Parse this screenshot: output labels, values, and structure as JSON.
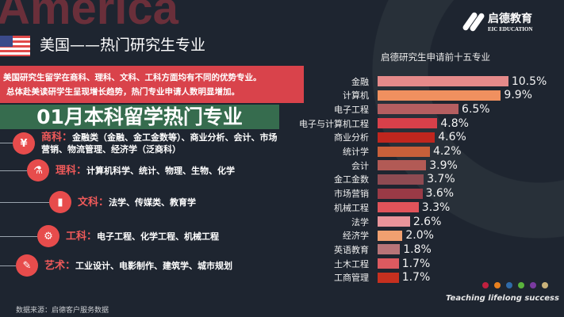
{
  "header": {
    "bg_word": "America",
    "title": "美国——热门研究生专业",
    "logo_cn": "启德教育",
    "logo_en": "EIC EDUCATION"
  },
  "intro": [
    "美国研究生留学在商科、理科、文科、工科方面均有不同的优势专业。",
    "总体赴美读研学生呈现增长趋势，热门专业申请人数明显增加。"
  ],
  "categories": [
    {
      "name": "商科",
      "sep": "：",
      "text": "金融类（金融、金工金数等）、商业分析、会计、市场营销、物流管理、经济学（泛商科）",
      "icon": "money-icon",
      "glyph": "¥"
    },
    {
      "name": "理科",
      "sep": "：",
      "text": "计算机科学、统计、物理、生物、化学",
      "icon": "flask-icon",
      "glyph": "⚗"
    },
    {
      "name": "文科",
      "sep": "：",
      "text": "法学、传媒类、教育学",
      "icon": "book-icon",
      "glyph": "▮"
    },
    {
      "name": "工科",
      "sep": "：",
      "text": "电子工程、化学工程、机械工程",
      "icon": "gear-icon",
      "glyph": "⚙"
    },
    {
      "name": "艺术",
      "sep": "：",
      "text": "工业设计、电影制作、建筑学、城市规划",
      "icon": "wand-icon",
      "glyph": "✎"
    }
  ],
  "banner": {
    "title": "01月本科留学热门专业"
  },
  "source": "数据来源：启德客户服务数据",
  "slogan": "Teaching lifelong success",
  "dot_colors": [
    "#c0203f",
    "#e8801e",
    "#2f6aa8",
    "#5ab33c",
    "#7a3aa0",
    "#c9b27a"
  ],
  "chart_data": {
    "type": "bar",
    "orientation": "horizontal",
    "title": "启德研究生申请前十五专业",
    "categories": [
      "金融",
      "计算机",
      "电子工程",
      "电子与计算机工程",
      "商业分析",
      "统计学",
      "会计",
      "金工金数",
      "市场营销",
      "机械工程",
      "法学",
      "经济学",
      "英语教育",
      "土木工程",
      "工商管理"
    ],
    "values": [
      10.5,
      9.9,
      6.5,
      4.8,
      4.6,
      4.2,
      3.9,
      3.7,
      3.6,
      3.3,
      2.6,
      2.0,
      1.8,
      1.7,
      1.7
    ],
    "value_labels": [
      "10.5%",
      "9.9%",
      "6.5%",
      "4.8%",
      "4.6%",
      "4.2%",
      "3.9%",
      "3.7%",
      "3.6%",
      "3.3%",
      "2.6%",
      "2.0%",
      "1.8%",
      "1.7%",
      "1.7%"
    ],
    "unit": "%",
    "colors": [
      "#e58a8a",
      "#f0905f",
      "#b45e60",
      "#d8404a",
      "#c0261e",
      "#c8603a",
      "#b25a55",
      "#8e4b52",
      "#9a3a46",
      "#e0535a",
      "#e8949a",
      "#f0a070",
      "#b87478",
      "#dc5a60",
      "#c6301f"
    ]
  }
}
